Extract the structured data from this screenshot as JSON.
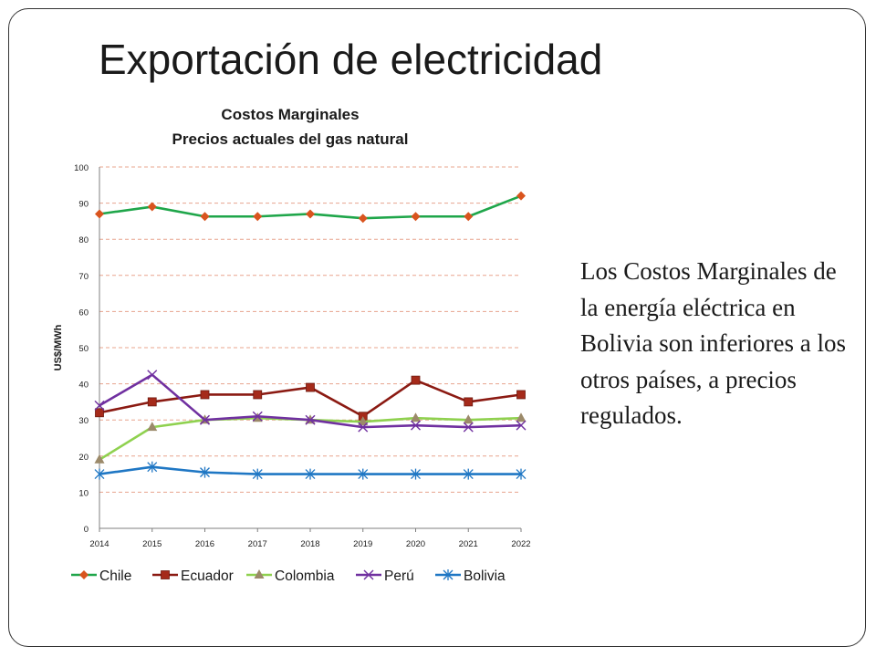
{
  "slide": {
    "title": "Exportación de electricidad",
    "body_text": "Los Costos Marginales de la energía eléctrica en Bolivia son inferiores a los otros países, a precios regulados."
  },
  "chart_data": {
    "type": "line",
    "title": "Costos Marginales",
    "subtitle": "Precios actuales del gas natural",
    "xlabel": "",
    "ylabel": "US$/MWh",
    "x": [
      "2014",
      "2015",
      "2016",
      "2017",
      "2018",
      "2019",
      "2020",
      "2021",
      "2022"
    ],
    "ylim": [
      0,
      100
    ],
    "yticks": [
      0,
      10,
      20,
      30,
      40,
      50,
      60,
      70,
      80,
      90,
      100
    ],
    "grid": "horizontal dashed",
    "legend_position": "bottom",
    "series": [
      {
        "name": "Chile",
        "color": "#1fa64a",
        "marker": "diamond",
        "marker_color": "#d9541e",
        "values": [
          87,
          89,
          86.3,
          86.3,
          87,
          85.8,
          86.3,
          86.3,
          92
        ]
      },
      {
        "name": "Ecuador",
        "color": "#8b1a12",
        "marker": "square",
        "marker_color": "#a52a1a",
        "values": [
          32,
          35,
          37,
          37,
          39,
          31,
          41,
          35,
          37
        ]
      },
      {
        "name": "Colombia",
        "color": "#8fd14f",
        "marker": "triangle",
        "marker_color": "#9c8a6a",
        "values": [
          19,
          28,
          30,
          30.5,
          30,
          29.5,
          30.5,
          30,
          30.5
        ]
      },
      {
        "name": "Perú",
        "color": "#7030a0",
        "marker": "x",
        "marker_color": "#7030a0",
        "values": [
          34,
          42.5,
          30,
          31,
          30,
          28,
          28.5,
          28,
          28.5
        ]
      },
      {
        "name": "Bolivia",
        "color": "#1f77c4",
        "marker": "star",
        "marker_color": "#1f77c4",
        "values": [
          15,
          17,
          15.5,
          15,
          15,
          15,
          15,
          15,
          15
        ]
      }
    ]
  }
}
